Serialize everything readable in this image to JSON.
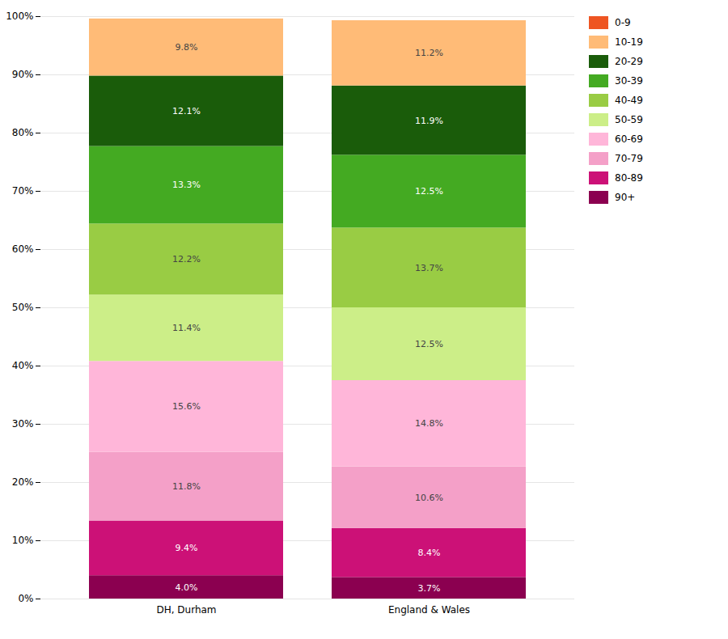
{
  "chart_data": {
    "type": "bar",
    "stacked": true,
    "data_labels": true,
    "grid": true,
    "legend": "right",
    "categories": [
      "DH, Durham",
      "England & Wales"
    ],
    "ylim": [
      0,
      100
    ],
    "yticks": [
      {
        "value": 0,
        "label": "0%"
      },
      {
        "value": 10,
        "label": "10%"
      },
      {
        "value": 20,
        "label": "20%"
      },
      {
        "value": 30,
        "label": "30%"
      },
      {
        "value": 40,
        "label": "40%"
      },
      {
        "value": 50,
        "label": "50%"
      },
      {
        "value": 60,
        "label": "60%"
      },
      {
        "value": 70,
        "label": "70%"
      },
      {
        "value": 80,
        "label": "80%"
      },
      {
        "value": 90,
        "label": "90%"
      },
      {
        "value": 100,
        "label": "100%"
      }
    ],
    "series": [
      {
        "name": "90+",
        "color": "#8B0050",
        "values": [
          4.0,
          3.7
        ],
        "value_labels": [
          "4.0%",
          "3.7%"
        ]
      },
      {
        "name": "80-89",
        "color": "#CC1177",
        "values": [
          9.4,
          8.4
        ],
        "value_labels": [
          "9.4%",
          "8.4%"
        ]
      },
      {
        "name": "70-79",
        "color": "#F4A0C8",
        "values": [
          11.8,
          10.6
        ],
        "value_labels": [
          "11.8%",
          "10.6%"
        ]
      },
      {
        "name": "60-69",
        "color": "#FFB6D9",
        "values": [
          15.6,
          14.8
        ],
        "value_labels": [
          "15.6%",
          "14.8%"
        ]
      },
      {
        "name": "50-59",
        "color": "#CCEE88",
        "values": [
          11.4,
          12.5
        ],
        "value_labels": [
          "11.4%",
          "12.5%"
        ]
      },
      {
        "name": "40-49",
        "color": "#99CC44",
        "values": [
          12.2,
          13.7
        ],
        "value_labels": [
          "12.2%",
          "13.7%"
        ]
      },
      {
        "name": "30-39",
        "color": "#44AA22",
        "values": [
          13.3,
          12.5
        ],
        "value_labels": [
          "13.3%",
          "12.5%"
        ]
      },
      {
        "name": "20-29",
        "color": "#1A5C0A",
        "values": [
          12.1,
          11.9
        ],
        "value_labels": [
          "12.1%",
          "11.9%"
        ]
      },
      {
        "name": "10-19",
        "color": "#FFBB77",
        "values": [
          9.8,
          11.2
        ],
        "value_labels": [
          "9.8%",
          "11.2%"
        ]
      },
      {
        "name": "0-9",
        "color": "#EE5522",
        "values": [
          null,
          null
        ],
        "value_labels": [
          null,
          null
        ]
      }
    ]
  }
}
